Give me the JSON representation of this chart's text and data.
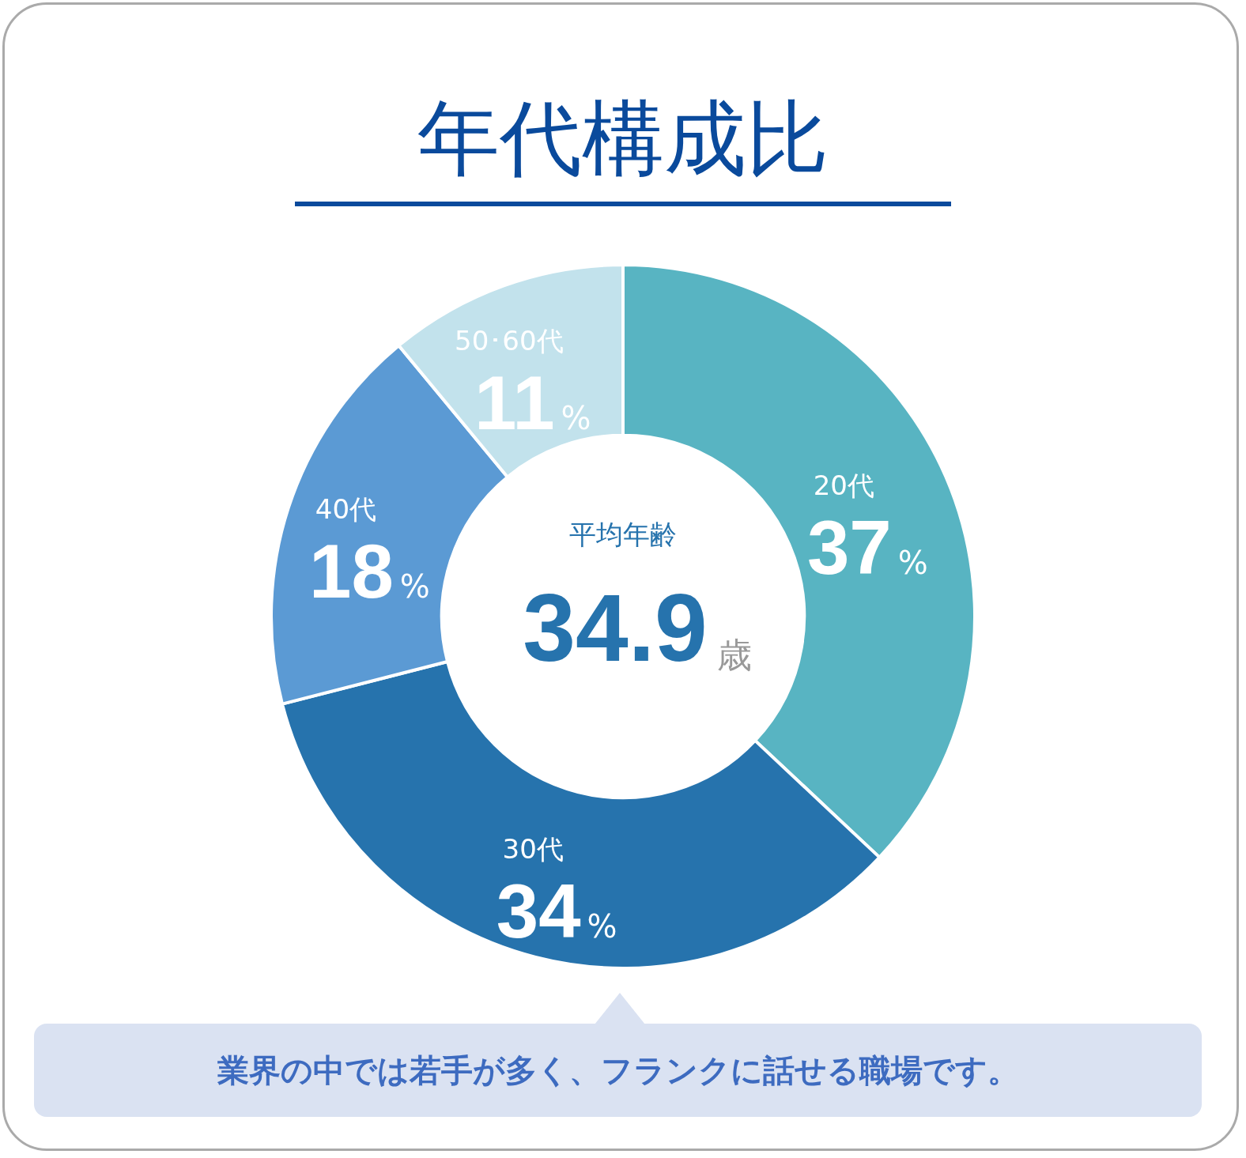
{
  "chart_data": {
    "type": "donut",
    "title": "年代構成比",
    "categories": [
      "20代",
      "30代",
      "40代",
      "50･60代"
    ],
    "values": [
      37,
      34,
      18,
      11
    ],
    "colors": [
      "#58b4c2",
      "#2673ad",
      "#5b9ad4",
      "#c2e2ec"
    ],
    "value_labels": [
      "37%",
      "34%",
      "18%",
      "11%"
    ],
    "legend": false,
    "annotations": [
      "平均年齢",
      "34.9歳",
      "業界の中では若手が多く、フランクに話せる職場です。"
    ]
  }
}
